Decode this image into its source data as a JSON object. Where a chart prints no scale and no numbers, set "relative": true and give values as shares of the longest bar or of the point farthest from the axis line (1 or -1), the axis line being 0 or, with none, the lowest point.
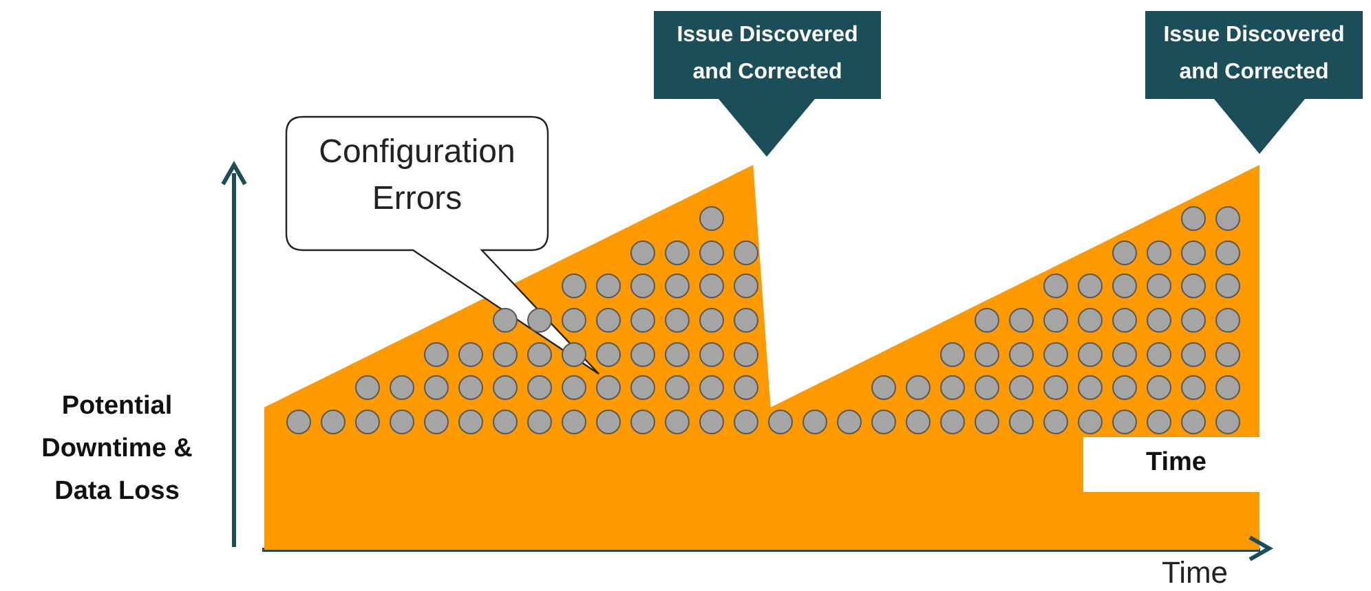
{
  "chart_data": {
    "type": "area",
    "relative": true,
    "categories": [
      null,
      null,
      null,
      null,
      null,
      null,
      null,
      null,
      null,
      null,
      null,
      null,
      null,
      null,
      null,
      null,
      null,
      null,
      null,
      null,
      null,
      null,
      null,
      null,
      null,
      null,
      null,
      null,
      null,
      null,
      null,
      null,
      null,
      null,
      null,
      null,
      null,
      null,
      null,
      null,
      null,
      null,
      null,
      null,
      null,
      null,
      null,
      null,
      null,
      null,
      null,
      null,
      null,
      null,
      null,
      null,
      null,
      null
    ],
    "series": [
      {
        "color": "#ff9900",
        "values": [
          0.37,
          0.3925,
          0.415,
          0.4375,
          0.46,
          0.4825,
          0.505,
          0.5275,
          0.55,
          0.5725,
          0.595,
          0.6175,
          0.64,
          null,
          null,
          0.7075,
          0.73,
          0.7525,
          0.775,
          0.7975,
          0.82,
          0.8425,
          0.865,
          0.8875,
          0.91,
          0.9325,
          0.955,
          0.9775,
          1,
          0.37,
          0.3925,
          0.415,
          0.4375,
          0.46,
          0.4825,
          0.505,
          0.5275,
          0.55,
          0.5725,
          0.595,
          0.6175,
          0.64,
          0.6625,
          0.685,
          0.7075,
          0.73,
          0.7525,
          0.775,
          0.7975,
          0.82,
          0.8425,
          0.865,
          0.8875,
          0.91,
          0.9325,
          0.955,
          0.9775,
          1
        ]
      }
    ],
    "xlabel": "Time",
    "ylabel": "Potential Downtime & Data Loss",
    "annotations": [
      "Configuration Errors",
      "Issue Discovered and Corrected",
      "Issue Discovered and Corrected",
      "Time"
    ]
  }
}
